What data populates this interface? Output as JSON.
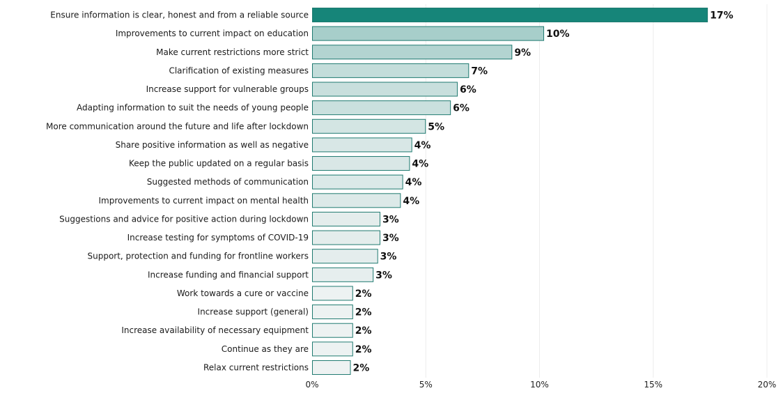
{
  "chart_data": {
    "type": "bar",
    "orientation": "horizontal",
    "categories": [
      "Ensure information is clear, honest and from a reliable source",
      "Improvements to current impact on education",
      "Make current restrictions more strict",
      "Clarification of existing measures",
      "Increase support for vulnerable groups",
      "Adapting information to suit the needs of young people",
      "More communication around the future and life after lockdown",
      "Share positive information as well as negative",
      "Keep the public updated on a regular basis",
      "Suggested methods of communication",
      "Improvements to current impact on mental health",
      "Suggestions and advice for positive action during lockdown",
      "Increase testing for symptoms of COVID-19",
      "Support, protection and funding for frontline workers",
      "Increase funding and financial support",
      "Work towards a cure or vaccine",
      "Increase support (general)",
      "Increase availability of necessary equipment",
      "Continue as they are",
      "Relax current restrictions"
    ],
    "values": [
      17.4,
      10.2,
      8.8,
      6.9,
      6.4,
      6.1,
      5.0,
      4.4,
      4.3,
      4.0,
      3.9,
      3.0,
      3.0,
      2.9,
      2.7,
      1.8,
      1.8,
      1.8,
      1.8,
      1.7
    ],
    "value_labels": [
      "17%",
      "10%",
      "9%",
      "7%",
      "6%",
      "6%",
      "5%",
      "4%",
      "4%",
      "4%",
      "4%",
      "3%",
      "3%",
      "3%",
      "3%",
      "2%",
      "2%",
      "2%",
      "2%",
      "2%"
    ],
    "x_ticks": [
      0,
      5,
      10,
      15,
      20
    ],
    "x_tick_labels": [
      "0%",
      "5%",
      "10%",
      "15%",
      "20%"
    ],
    "xlim": [
      0,
      20
    ],
    "grid": true,
    "colors": {
      "darkest": "#168579",
      "lightest": "#eef2f2",
      "border": "#1f7a70",
      "gridline": "#ececec"
    }
  }
}
